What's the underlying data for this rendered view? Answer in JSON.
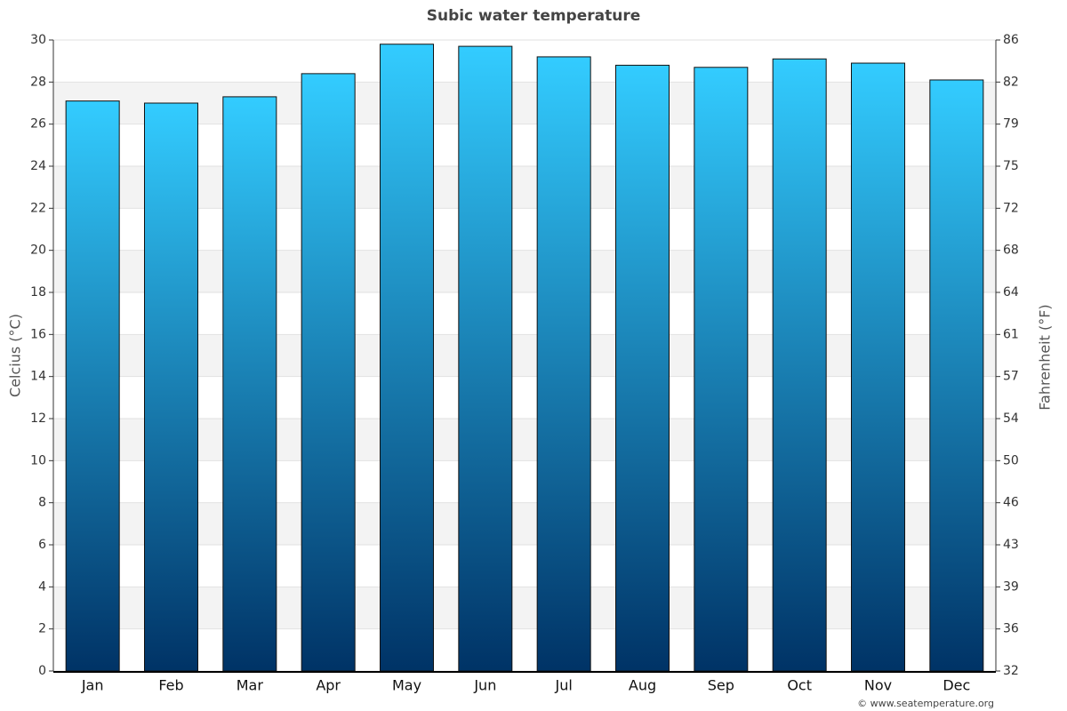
{
  "chart_data": {
    "type": "bar",
    "title": "Subic water temperature",
    "y_label": "Celcius (°C)",
    "y2_label": "Fahrenheit (°F)",
    "footer": "© www.seatemperature.org",
    "categories": [
      "Jan",
      "Feb",
      "Mar",
      "Apr",
      "May",
      "Jun",
      "Jul",
      "Aug",
      "Sep",
      "Oct",
      "Nov",
      "Dec"
    ],
    "values": [
      27.1,
      27.0,
      27.3,
      28.4,
      29.8,
      29.7,
      29.2,
      28.8,
      28.7,
      29.1,
      28.9,
      28.1
    ],
    "gradient": {
      "top": "#33ccff",
      "bottom": "#003366"
    },
    "ylim": [
      0,
      30
    ],
    "yticks": [
      0,
      2,
      4,
      6,
      8,
      10,
      12,
      14,
      16,
      18,
      20,
      22,
      24,
      26,
      28,
      30
    ],
    "y2lim": [
      32,
      86
    ],
    "y2ticks": [
      32,
      {
        "value": 35.6,
        "label": "36"
      },
      {
        "value": 39.2,
        "label": "39"
      },
      {
        "value": 42.8,
        "label": "43"
      },
      {
        "value": 46.4,
        "label": "46"
      },
      50,
      {
        "value": 53.6,
        "label": "54"
      },
      {
        "value": 57.2,
        "label": "57"
      },
      {
        "value": 60.8,
        "label": "61"
      },
      {
        "value": 64.4,
        "label": "64"
      },
      68,
      {
        "value": 71.6,
        "label": "72"
      },
      {
        "value": 75.2,
        "label": "75"
      },
      {
        "value": 78.8,
        "label": "79"
      },
      {
        "value": 82.4,
        "label": "82"
      },
      86
    ],
    "grid": true
  }
}
